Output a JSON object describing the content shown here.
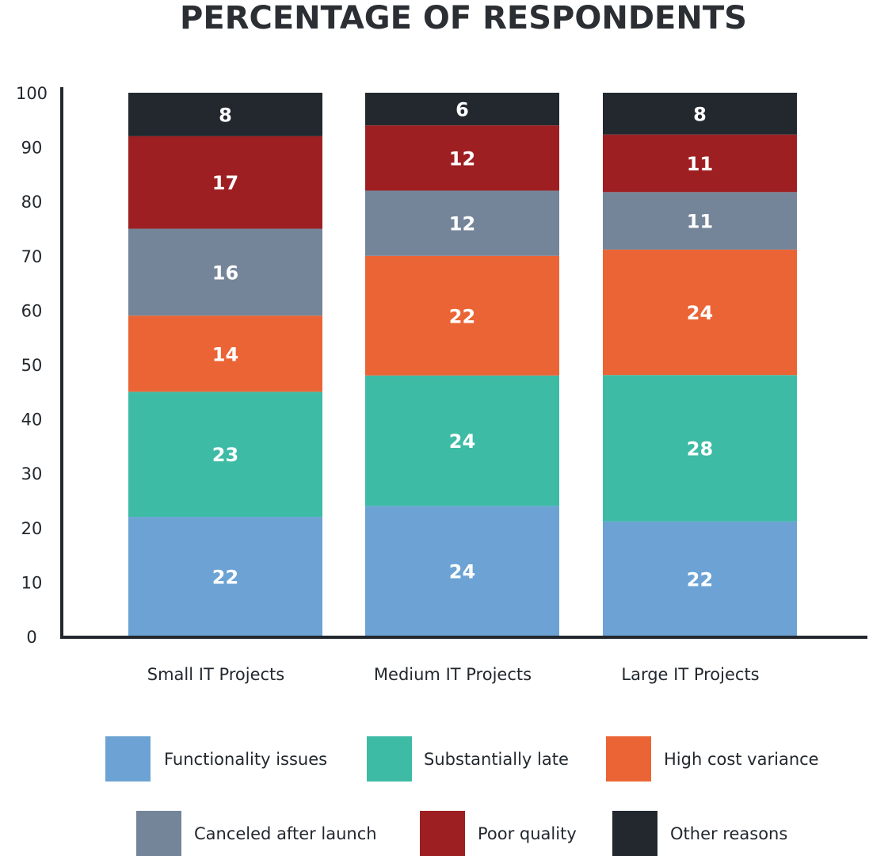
{
  "chart_data": {
    "type": "bar",
    "stacked": true,
    "title": "PERCENTAGE OF RESPONDENTS",
    "xlabel": "",
    "ylabel": "",
    "ylim": [
      0,
      100
    ],
    "yticks": [
      0,
      10,
      20,
      30,
      40,
      50,
      60,
      70,
      80,
      90,
      100
    ],
    "grid": false,
    "legend_position": "bottom",
    "categories": [
      "Small IT Projects",
      "Medium IT Projects",
      "Large IT Projects"
    ],
    "series": [
      {
        "name": "Functionality issues",
        "color": "#6ca3d4",
        "values": [
          22,
          24,
          22
        ]
      },
      {
        "name": "Substantially late",
        "color": "#3dbba5",
        "values": [
          23,
          24,
          28
        ]
      },
      {
        "name": "High cost variance",
        "color": "#eb6435",
        "values": [
          14,
          22,
          24
        ]
      },
      {
        "name": "Canceled after launch",
        "color": "#758599",
        "values": [
          16,
          12,
          11
        ]
      },
      {
        "name": "Poor quality",
        "color": "#9e1f22",
        "values": [
          17,
          12,
          11
        ]
      },
      {
        "name": "Other reasons",
        "color": "#22282e",
        "values": [
          8,
          6,
          8
        ]
      }
    ]
  }
}
